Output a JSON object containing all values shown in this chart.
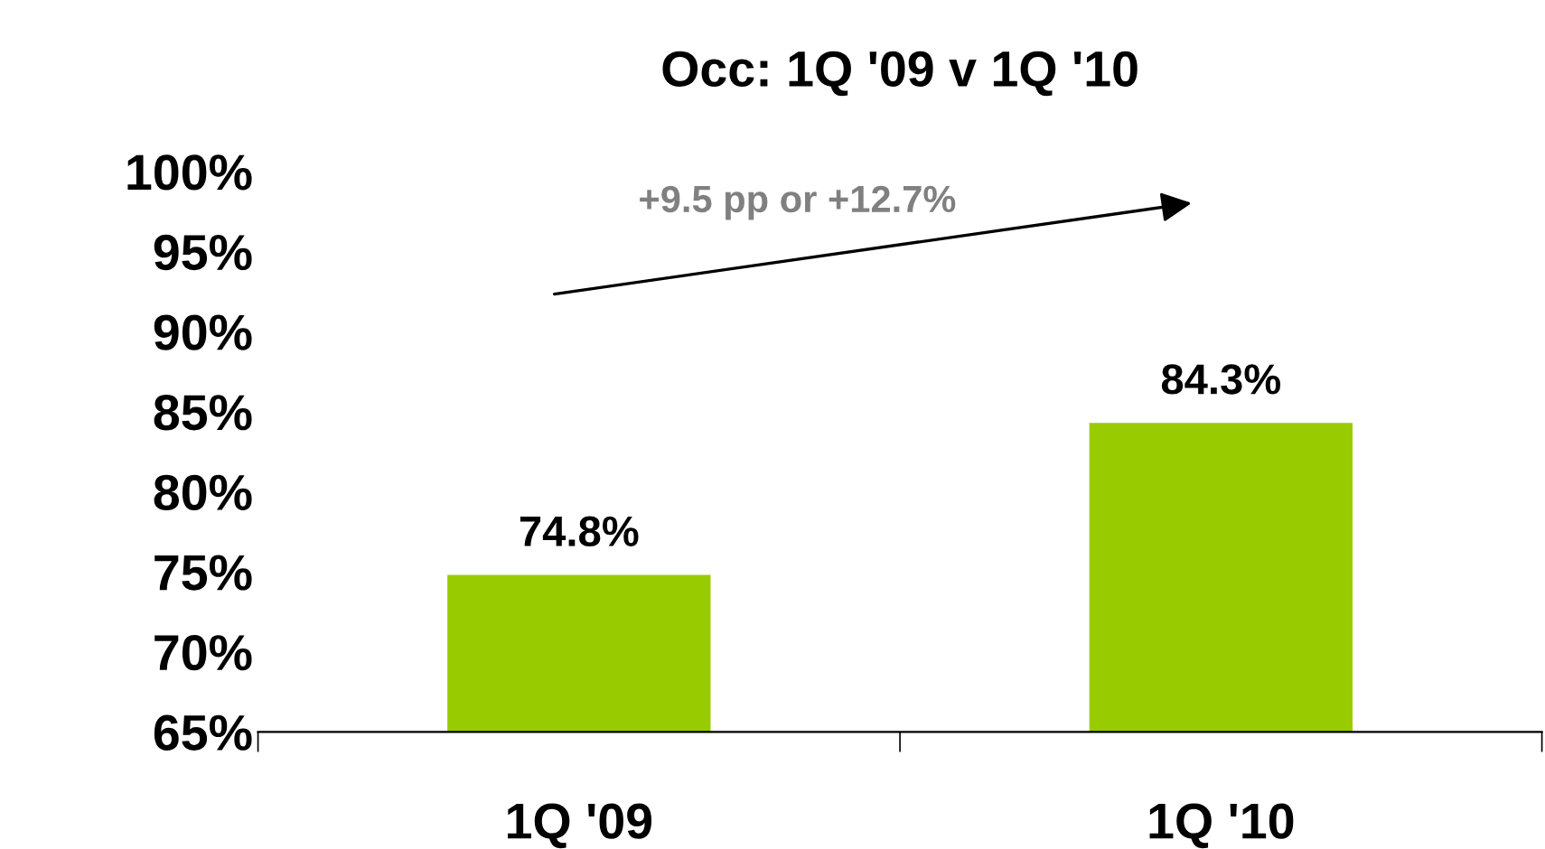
{
  "chart_data": {
    "type": "bar",
    "title": "Occ: 1Q '09 v 1Q '10",
    "categories": [
      "1Q '09",
      "1Q '10"
    ],
    "values": [
      74.8,
      84.3
    ],
    "color": "#99cc00",
    "value_labels": [
      "74.8%",
      "84.3%"
    ],
    "ylim": [
      65,
      100
    ],
    "yticks": [
      {
        "value": 65,
        "label": "65%"
      },
      {
        "value": 70,
        "label": "70%"
      },
      {
        "value": 75,
        "label": "75%"
      },
      {
        "value": 80,
        "label": "80%"
      },
      {
        "value": 85,
        "label": "85%"
      },
      {
        "value": 90,
        "label": "90%"
      },
      {
        "value": 95,
        "label": "95%"
      },
      {
        "value": 100,
        "label": "100%"
      }
    ],
    "annotations": [
      "+9.5 pp or +12.7%"
    ],
    "grid": false,
    "legend": false
  }
}
